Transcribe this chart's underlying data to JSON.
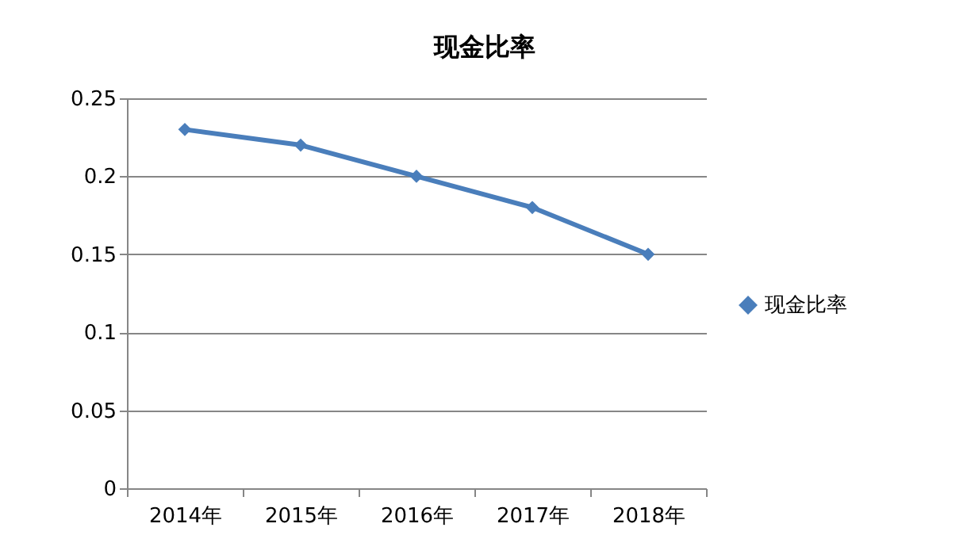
{
  "chart_data": {
    "type": "line",
    "title": "现金比率",
    "categories": [
      "2014年",
      "2015年",
      "2016年",
      "2017年",
      "2018年"
    ],
    "series": [
      {
        "name": "现金比率",
        "color": "#4a7ebb",
        "values": [
          0.23,
          0.22,
          0.2,
          0.18,
          0.15
        ]
      }
    ],
    "ylim": [
      0,
      0.25
    ],
    "yticks": [
      0,
      0.05,
      0.1,
      0.15,
      0.2,
      0.25
    ],
    "grid": "y",
    "legend": "right",
    "marker": "diamond",
    "line_style": "solid"
  }
}
